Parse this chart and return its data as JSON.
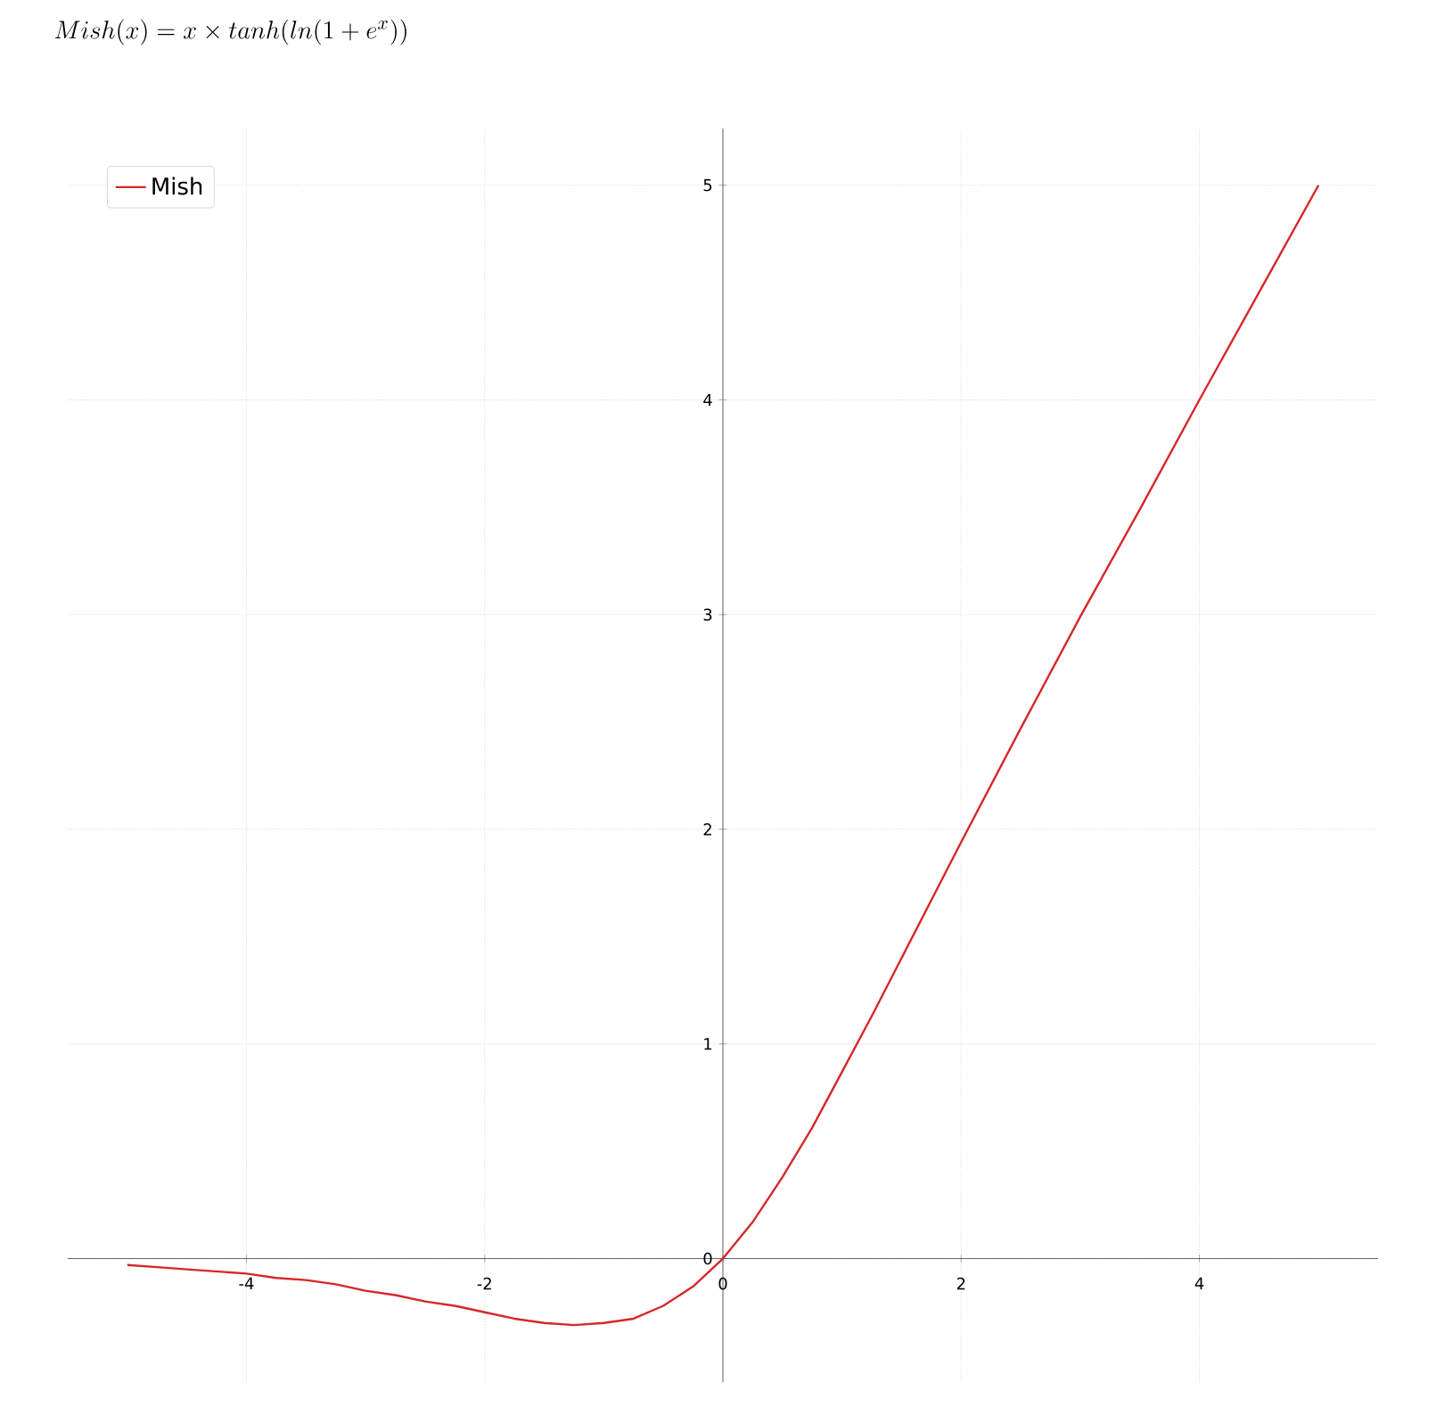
{
  "chart_data": {
    "type": "line",
    "title": "Mish(x) = x \\times tanh(ln(1 + e^{x}))",
    "x": [
      -5,
      -4.75,
      -4.5,
      -4.25,
      -4,
      -3.75,
      -3.5,
      -3.25,
      -3,
      -2.75,
      -2.5,
      -2.25,
      -2,
      -1.75,
      -1.5,
      -1.25,
      -1,
      -0.75,
      -0.5,
      -0.25,
      0,
      0.25,
      0.5,
      0.75,
      1,
      1.25,
      1.5,
      1.75,
      2,
      2.5,
      3,
      3.5,
      4,
      4.5,
      5
    ],
    "series": [
      {
        "name": "Mish",
        "color": "#d62728",
        "values": [
          -0.03,
          -0.04,
          -0.05,
          -0.06,
          -0.07,
          -0.09,
          -0.1,
          -0.12,
          -0.15,
          -0.17,
          -0.2,
          -0.22,
          -0.25,
          -0.28,
          -0.3,
          -0.31,
          -0.3,
          -0.28,
          -0.22,
          -0.13,
          0,
          0.17,
          0.38,
          0.61,
          0.87,
          1.13,
          1.4,
          1.67,
          1.94,
          2.47,
          2.99,
          3.49,
          4.0,
          4.5,
          5.0
        ]
      }
    ],
    "xlim": [
      -5.5,
      5.5
    ],
    "ylim": [
      -0.575,
      5.265
    ],
    "xticks": [
      -4,
      -2,
      0,
      2,
      4
    ],
    "yticks": [
      0,
      1,
      2,
      3,
      4,
      5
    ],
    "grid": true,
    "legend": "top left",
    "marker": "none",
    "line_style": "solid"
  }
}
